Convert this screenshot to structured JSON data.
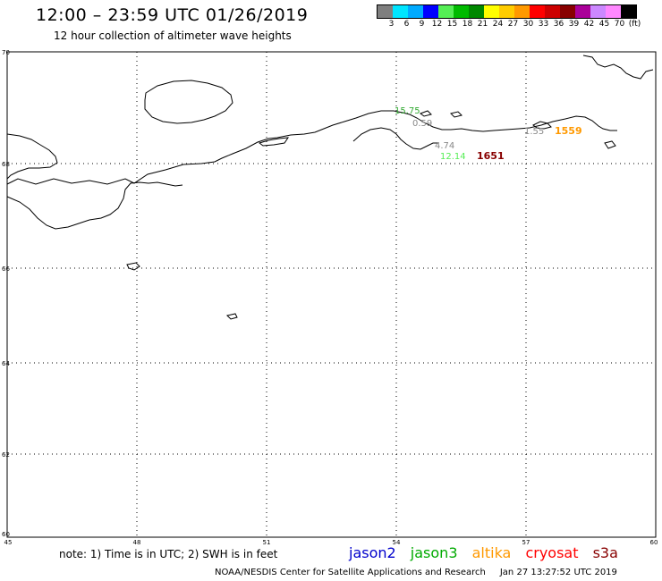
{
  "header": {
    "title": "12:00 – 23:59 UTC 01/26/2019",
    "subtitle": "12 hour collection of altimeter wave heights"
  },
  "legend": {
    "colors": [
      "#7f7f7f",
      "#00e5ff",
      "#00aaff",
      "#0000ff",
      "#55ee55",
      "#00bb00",
      "#008800",
      "#ffff00",
      "#ffcc00",
      "#ff9900",
      "#ff0000",
      "#cc0000",
      "#880000",
      "#aa0099",
      "#cc88ff",
      "#ff88ff",
      "#000000"
    ],
    "labels": [
      "3",
      "6",
      "9",
      "12",
      "15",
      "18",
      "21",
      "24",
      "27",
      "30",
      "33",
      "36",
      "39",
      "42",
      "45",
      "70",
      "(ft)"
    ]
  },
  "axes": {
    "lat_labels": [
      "70",
      "68",
      "66",
      "64",
      "62",
      "60"
    ],
    "lon_labels": [
      "45",
      "48",
      "51",
      "54",
      "57",
      "60"
    ]
  },
  "readings": [
    {
      "text": "15.75",
      "color": "#33aa33"
    },
    {
      "text": "0.59",
      "color": "#888888"
    },
    {
      "text": "4.74",
      "color": "#888888"
    },
    {
      "text": "12.14",
      "color": "#55ee55"
    },
    {
      "text": "1651",
      "color": "#880000"
    },
    {
      "text": "1.55",
      "color": "#888888"
    },
    {
      "text": "1559",
      "color": "#ff9900"
    }
  ],
  "footer": {
    "note": "note: 1) Time is in UTC; 2) SWH is in feet",
    "satellites": [
      {
        "name": "jason2",
        "color": "#0000cc"
      },
      {
        "name": "jason3",
        "color": "#00aa00"
      },
      {
        "name": "altika",
        "color": "#ff9900"
      },
      {
        "name": "cryosat",
        "color": "#ff0000"
      },
      {
        "name": "s3a",
        "color": "#880000"
      }
    ],
    "credit": "NOAA/NESDIS Center for Satellite Applications and Research",
    "timestamp": "Jan 27 13:27:52 UTC 2019"
  }
}
